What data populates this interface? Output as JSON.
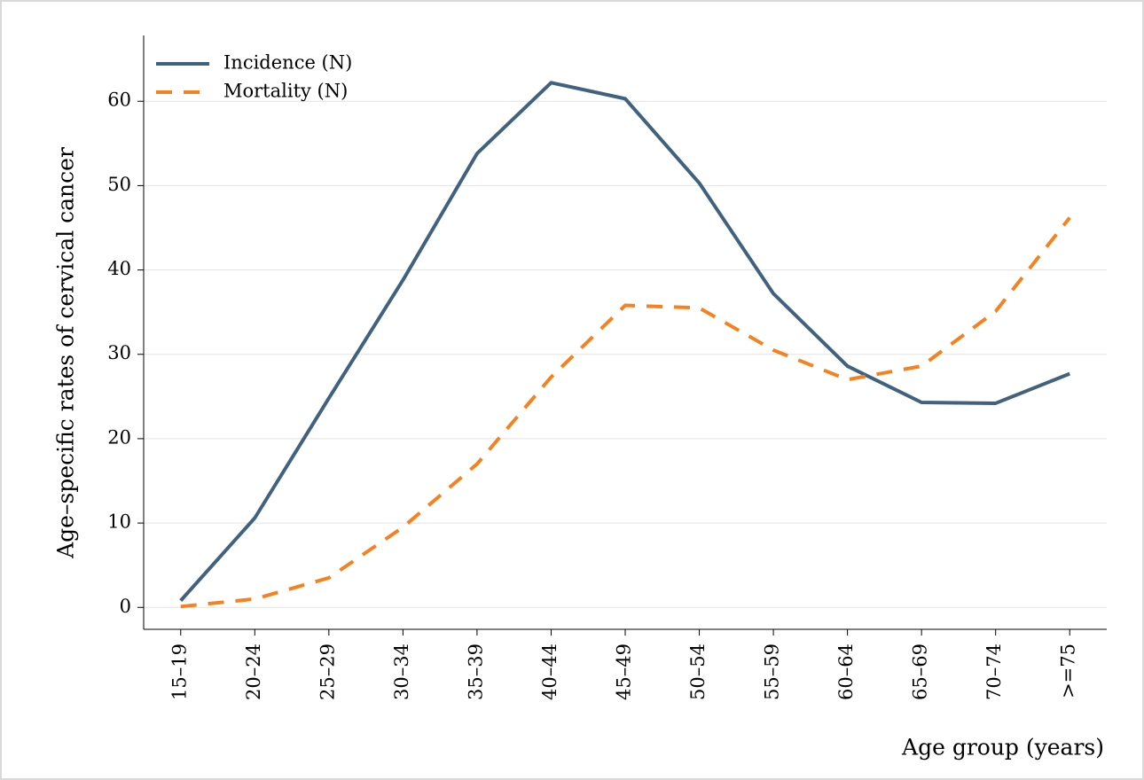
{
  "chart_data": {
    "type": "line",
    "x_label": "Age group (years)",
    "y_label": "Age–specific rates of cervical cancer",
    "categories": [
      "15–19",
      "20–24",
      "25–29",
      "30–34",
      "35–39",
      "40–44",
      "45–49",
      "50–54",
      "55–59",
      "60–64",
      "65–69",
      "70–74",
      ">=75"
    ],
    "series": [
      {
        "name": "Incidence (N)",
        "color": "#41627e",
        "dash": false,
        "values": [
          0.8,
          10.6,
          24.8,
          38.8,
          53.8,
          62.2,
          60.3,
          50.3,
          37.2,
          28.6,
          24.3,
          24.2,
          27.7
        ]
      },
      {
        "name": "Mortality (N)",
        "color": "#f58220",
        "dash": true,
        "values": [
          0.1,
          1.0,
          3.5,
          9.5,
          17.0,
          27.3,
          35.8,
          35.5,
          30.5,
          27.0,
          28.6,
          35.1,
          46.2
        ]
      }
    ],
    "ylim": [
      -2.6,
      67.8
    ],
    "yticks": [
      0,
      10,
      20,
      30,
      40,
      50,
      60
    ],
    "grid": true,
    "legend": "upper left"
  }
}
